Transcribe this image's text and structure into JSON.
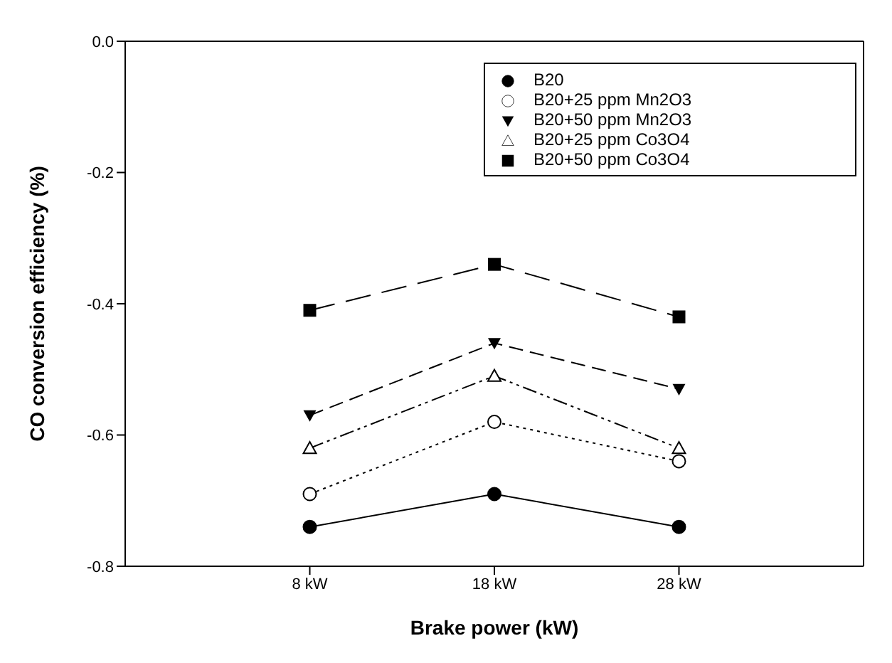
{
  "chart_data": {
    "type": "line",
    "xlabel": "Brake power (kW)",
    "ylabel": "CO conversion efficiency (%)",
    "categories": [
      "8 kW",
      "18 kW",
      "28 kW"
    ],
    "series": [
      {
        "name": "B20",
        "color": "#000000",
        "values": [
          -0.74,
          -0.69,
          -0.74
        ],
        "marker": "circle",
        "line_style": "solid"
      },
      {
        "name": "B20+25 ppm Mn2O3",
        "color": "#000000",
        "values": [
          -0.69,
          -0.58,
          -0.64
        ],
        "marker": "circle-open",
        "line_style": "dotted"
      },
      {
        "name": "B20+50 ppm Mn2O3",
        "color": "#000000",
        "values": [
          -0.57,
          -0.46,
          -0.53
        ],
        "marker": "triangle-down",
        "line_style": "dashed"
      },
      {
        "name": "B20+25 ppm Co3O4",
        "color": "#000000",
        "values": [
          -0.62,
          -0.51,
          -0.62
        ],
        "marker": "triangle-open",
        "line_style": "dashdot"
      },
      {
        "name": "B20+50 ppm Co3O4",
        "color": "#000000",
        "values": [
          -0.41,
          -0.34,
          -0.42
        ],
        "marker": "square",
        "line_style": "longdash"
      }
    ],
    "ylim": [
      -0.8,
      0.0
    ],
    "yticks": [
      {
        "value": -0.8,
        "label": "-0.8"
      },
      {
        "value": -0.6,
        "label": "-0.6"
      },
      {
        "value": -0.4,
        "label": "-0.4"
      },
      {
        "value": -0.2,
        "label": "-0.2"
      },
      {
        "value": 0.0,
        "label": "0.0"
      }
    ],
    "grid": false,
    "legend": "top right"
  }
}
